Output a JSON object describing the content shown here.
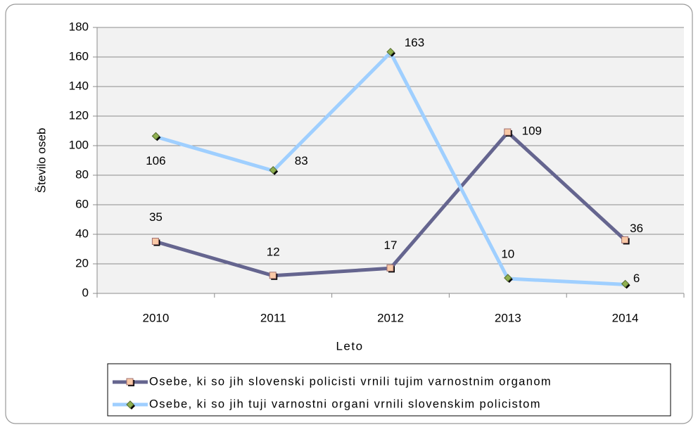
{
  "chart_data": {
    "type": "line",
    "categories": [
      "2010",
      "2011",
      "2012",
      "2013",
      "2014"
    ],
    "series": [
      {
        "name": "Osebe, ki so jih slovenski policisti vrnili tujim varnostnim organom",
        "color": "#65658f",
        "marker_color": "#f9c9a6",
        "values": [
          35,
          12,
          17,
          109,
          36
        ]
      },
      {
        "name": "Osebe, ki so jih tuji varnostni organi vrnili slovenskim policistom",
        "color": "#9fcfff",
        "marker_color": "#8fb050",
        "values": [
          106,
          83,
          163,
          10,
          6
        ]
      }
    ],
    "y_label": "Število oseb",
    "x_label": "Leto",
    "ylim": [
      0,
      180
    ],
    "yticks": [
      0,
      20,
      40,
      60,
      80,
      100,
      120,
      140,
      160,
      180
    ],
    "grid": true,
    "legend": "bottom"
  }
}
